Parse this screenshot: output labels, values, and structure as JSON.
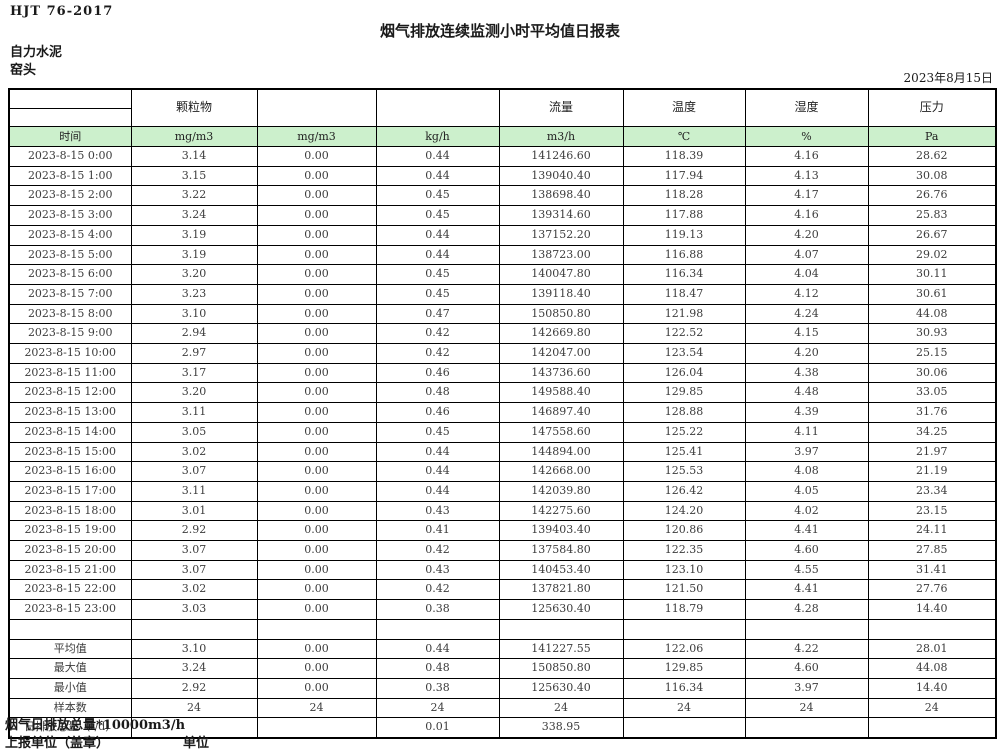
{
  "meta": {
    "standard": "HJT  76-2017",
    "title": "烟气排放连续监测小时平均值日报表",
    "company": "自力水泥",
    "location": "窑头",
    "date": "2023年8月15日"
  },
  "table": {
    "group_headers": [
      "",
      "颗粒物",
      "",
      "",
      "流量",
      "温度",
      "湿度",
      "压力"
    ],
    "unit_row": [
      "时间",
      "mg/m3",
      "mg/m3",
      "kg/h",
      "m3/h",
      "℃",
      "%",
      "Pa"
    ],
    "rows": [
      [
        "2023-8-15 0:00",
        "3.14",
        "0.00",
        "0.44",
        "141246.60",
        "118.39",
        "4.16",
        "28.62"
      ],
      [
        "2023-8-15 1:00",
        "3.15",
        "0.00",
        "0.44",
        "139040.40",
        "117.94",
        "4.13",
        "30.08"
      ],
      [
        "2023-8-15 2:00",
        "3.22",
        "0.00",
        "0.45",
        "138698.40",
        "118.28",
        "4.17",
        "26.76"
      ],
      [
        "2023-8-15 3:00",
        "3.24",
        "0.00",
        "0.45",
        "139314.60",
        "117.88",
        "4.16",
        "25.83"
      ],
      [
        "2023-8-15 4:00",
        "3.19",
        "0.00",
        "0.44",
        "137152.20",
        "119.13",
        "4.20",
        "26.67"
      ],
      [
        "2023-8-15 5:00",
        "3.19",
        "0.00",
        "0.44",
        "138723.00",
        "116.88",
        "4.07",
        "29.02"
      ],
      [
        "2023-8-15 6:00",
        "3.20",
        "0.00",
        "0.45",
        "140047.80",
        "116.34",
        "4.04",
        "30.11"
      ],
      [
        "2023-8-15 7:00",
        "3.23",
        "0.00",
        "0.45",
        "139118.40",
        "118.47",
        "4.12",
        "30.61"
      ],
      [
        "2023-8-15 8:00",
        "3.10",
        "0.00",
        "0.47",
        "150850.80",
        "121.98",
        "4.24",
        "44.08"
      ],
      [
        "2023-8-15 9:00",
        "2.94",
        "0.00",
        "0.42",
        "142669.80",
        "122.52",
        "4.15",
        "30.93"
      ],
      [
        "2023-8-15 10:00",
        "2.97",
        "0.00",
        "0.42",
        "142047.00",
        "123.54",
        "4.20",
        "25.15"
      ],
      [
        "2023-8-15 11:00",
        "3.17",
        "0.00",
        "0.46",
        "143736.60",
        "126.04",
        "4.38",
        "30.06"
      ],
      [
        "2023-8-15 12:00",
        "3.20",
        "0.00",
        "0.48",
        "149588.40",
        "129.85",
        "4.48",
        "33.05"
      ],
      [
        "2023-8-15 13:00",
        "3.11",
        "0.00",
        "0.46",
        "146897.40",
        "128.88",
        "4.39",
        "31.76"
      ],
      [
        "2023-8-15 14:00",
        "3.05",
        "0.00",
        "0.45",
        "147558.60",
        "125.22",
        "4.11",
        "34.25"
      ],
      [
        "2023-8-15 15:00",
        "3.02",
        "0.00",
        "0.44",
        "144894.00",
        "125.41",
        "3.97",
        "21.97"
      ],
      [
        "2023-8-15 16:00",
        "3.07",
        "0.00",
        "0.44",
        "142668.00",
        "125.53",
        "4.08",
        "21.19"
      ],
      [
        "2023-8-15 17:00",
        "3.11",
        "0.00",
        "0.44",
        "142039.80",
        "126.42",
        "4.05",
        "23.34"
      ],
      [
        "2023-8-15 18:00",
        "3.01",
        "0.00",
        "0.43",
        "142275.60",
        "124.20",
        "4.02",
        "23.15"
      ],
      [
        "2023-8-15 19:00",
        "2.92",
        "0.00",
        "0.41",
        "139403.40",
        "120.86",
        "4.41",
        "24.11"
      ],
      [
        "2023-8-15 20:00",
        "3.07",
        "0.00",
        "0.42",
        "137584.80",
        "122.35",
        "4.60",
        "27.85"
      ],
      [
        "2023-8-15 21:00",
        "3.07",
        "0.00",
        "0.43",
        "140453.40",
        "123.10",
        "4.55",
        "31.41"
      ],
      [
        "2023-8-15 22:00",
        "3.02",
        "0.00",
        "0.42",
        "137821.80",
        "121.50",
        "4.41",
        "27.76"
      ],
      [
        "2023-8-15 23:00",
        "3.03",
        "0.00",
        "0.38",
        "125630.40",
        "118.79",
        "4.28",
        "14.40"
      ]
    ],
    "spacer_row": [
      "",
      "",
      "",
      "",
      "",
      "",
      "",
      ""
    ],
    "summary": [
      [
        "平均值",
        "3.10",
        "0.00",
        "0.44",
        "141227.55",
        "122.06",
        "4.22",
        "28.01"
      ],
      [
        "最大值",
        "3.24",
        "0.00",
        "0.48",
        "150850.80",
        "129.85",
        "4.60",
        "44.08"
      ],
      [
        "最小值",
        "2.92",
        "0.00",
        "0.38",
        "125630.40",
        "116.34",
        "3.97",
        "14.40"
      ],
      [
        "样本数",
        "24",
        "24",
        "24",
        "24",
        "24",
        "24",
        "24"
      ],
      [
        "日排放总量（t/d）",
        "",
        "",
        "0.01",
        "338.95",
        "",
        "",
        ""
      ]
    ]
  },
  "footer": {
    "note": "烟气日排放总量*10000m3/h",
    "report_unit_label": "上报单位（盖章）",
    "unit_label": "单位"
  },
  "colors": {
    "header_green": "#ccf0cc",
    "border": "#000000"
  }
}
